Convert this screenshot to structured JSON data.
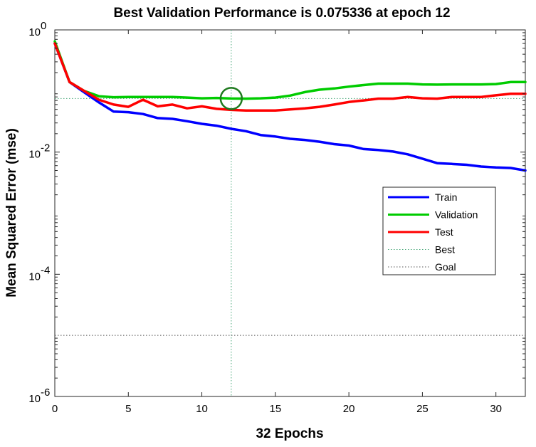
{
  "chart_data": {
    "type": "line",
    "title": "Best Validation Performance is 0.075336 at epoch 12",
    "xlabel": "32 Epochs",
    "ylabel": "Mean Squared Error  (mse)",
    "xlim": [
      0,
      32
    ],
    "ylim": [
      1e-06,
      1
    ],
    "yscale": "log",
    "x_ticks": [
      "0",
      "5",
      "10",
      "15",
      "20",
      "25",
      "30"
    ],
    "y_ticks": [
      {
        "base": "10",
        "exp": "0"
      },
      {
        "base": "10",
        "exp": "-2"
      },
      {
        "base": "10",
        "exp": "-4"
      },
      {
        "base": "10",
        "exp": "-6"
      }
    ],
    "legend_position": "center-right",
    "series": [
      {
        "name": "Train",
        "color": "#0000ff",
        "x": [
          0,
          1,
          2,
          3,
          4,
          5,
          6,
          7,
          8,
          9,
          10,
          11,
          12,
          13,
          14,
          15,
          16,
          17,
          18,
          19,
          20,
          21,
          22,
          23,
          24,
          25,
          26,
          27,
          28,
          29,
          30,
          31,
          32
        ],
        "values": [
          0.6,
          0.14,
          0.095,
          0.065,
          0.046,
          0.045,
          0.042,
          0.036,
          0.035,
          0.032,
          0.029,
          0.027,
          0.024,
          0.022,
          0.019,
          0.018,
          0.0165,
          0.0158,
          0.0148,
          0.0135,
          0.0128,
          0.0112,
          0.0108,
          0.0102,
          0.0092,
          0.0078,
          0.0066,
          0.0064,
          0.0062,
          0.0058,
          0.0056,
          0.0055,
          0.005
        ]
      },
      {
        "name": "Validation",
        "color": "#00cc00",
        "x": [
          0,
          1,
          2,
          3,
          4,
          5,
          6,
          7,
          8,
          9,
          10,
          11,
          12,
          13,
          14,
          15,
          16,
          17,
          18,
          19,
          20,
          21,
          22,
          23,
          24,
          25,
          26,
          27,
          28,
          29,
          30,
          31,
          32
        ],
        "values": [
          0.65,
          0.14,
          0.1,
          0.082,
          0.079,
          0.08,
          0.08,
          0.08,
          0.08,
          0.078,
          0.076,
          0.077,
          0.075336,
          0.075,
          0.076,
          0.078,
          0.084,
          0.096,
          0.105,
          0.11,
          0.118,
          0.125,
          0.132,
          0.132,
          0.132,
          0.128,
          0.127,
          0.128,
          0.128,
          0.128,
          0.13,
          0.14,
          0.14
        ]
      },
      {
        "name": "Test",
        "color": "#ff0000",
        "x": [
          0,
          1,
          2,
          3,
          4,
          5,
          6,
          7,
          8,
          9,
          10,
          11,
          12,
          13,
          14,
          15,
          16,
          17,
          18,
          19,
          20,
          21,
          22,
          23,
          24,
          25,
          26,
          27,
          28,
          29,
          30,
          31,
          32
        ],
        "values": [
          0.6,
          0.14,
          0.1,
          0.072,
          0.06,
          0.055,
          0.072,
          0.056,
          0.06,
          0.052,
          0.056,
          0.051,
          0.049,
          0.048,
          0.048,
          0.048,
          0.05,
          0.052,
          0.055,
          0.06,
          0.066,
          0.07,
          0.075,
          0.075,
          0.08,
          0.076,
          0.075,
          0.08,
          0.08,
          0.08,
          0.085,
          0.09,
          0.09
        ]
      }
    ],
    "best": {
      "name": "Best",
      "epoch": 12,
      "value": 0.075336,
      "color": "#4aa87a"
    },
    "goal": {
      "name": "Goal",
      "value": 1e-05,
      "color": "#555555"
    }
  }
}
